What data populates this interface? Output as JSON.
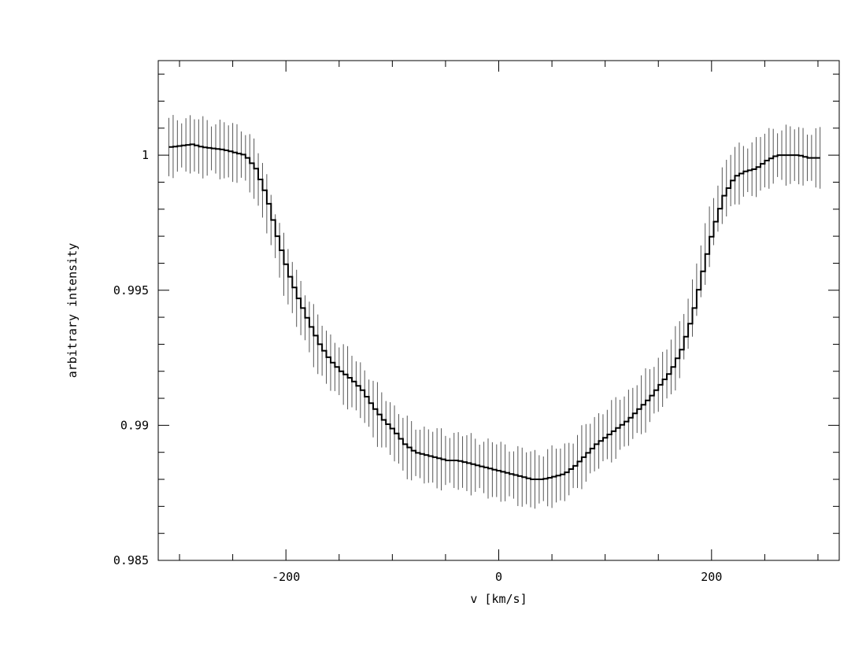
{
  "chart_data": {
    "type": "line",
    "title": "",
    "xlabel": "v [km/s]",
    "ylabel": "arbitrary intensity",
    "xlim": [
      -320,
      320
    ],
    "ylim": [
      0.985,
      1.0035
    ],
    "grid": false,
    "x_ticks": [
      {
        "value": -200,
        "label": "-200"
      },
      {
        "value": 0,
        "label": "0"
      },
      {
        "value": 200,
        "label": "200"
      }
    ],
    "y_ticks": [
      {
        "value": 0.985,
        "label": "0.985"
      },
      {
        "value": 0.99,
        "label": "0.99"
      },
      {
        "value": 0.995,
        "label": "0.995"
      },
      {
        "value": 1.0,
        "label": "1"
      }
    ],
    "x_minor_step": 50,
    "y_minor_step": 0.001,
    "series": [
      {
        "color": "#000000",
        "error_color": "#555555",
        "error_half_width": 0.001,
        "points": [
          [
            -310,
            1.0003
          ],
          [
            -290,
            1.0004
          ],
          [
            -280,
            1.0003
          ],
          [
            -260,
            1.0002
          ],
          [
            -250,
            1.0001
          ],
          [
            -240,
            1.0
          ],
          [
            -230,
            0.9995
          ],
          [
            -220,
            0.9985
          ],
          [
            -210,
            0.997
          ],
          [
            -200,
            0.9957
          ],
          [
            -190,
            0.9947
          ],
          [
            -180,
            0.9938
          ],
          [
            -170,
            0.993
          ],
          [
            -160,
            0.9924
          ],
          [
            -150,
            0.992
          ],
          [
            -140,
            0.9917
          ],
          [
            -130,
            0.9913
          ],
          [
            -120,
            0.9907
          ],
          [
            -110,
            0.9902
          ],
          [
            -100,
            0.9898
          ],
          [
            -90,
            0.9893
          ],
          [
            -80,
            0.989
          ],
          [
            -70,
            0.9889
          ],
          [
            -60,
            0.9888
          ],
          [
            -50,
            0.9887
          ],
          [
            -40,
            0.9887
          ],
          [
            -30,
            0.9886
          ],
          [
            -20,
            0.9885
          ],
          [
            -10,
            0.9884
          ],
          [
            0,
            0.9883
          ],
          [
            10,
            0.9882
          ],
          [
            20,
            0.9881
          ],
          [
            30,
            0.988
          ],
          [
            40,
            0.988
          ],
          [
            50,
            0.9881
          ],
          [
            60,
            0.9882
          ],
          [
            70,
            0.9885
          ],
          [
            80,
            0.9889
          ],
          [
            90,
            0.9893
          ],
          [
            100,
            0.9896
          ],
          [
            110,
            0.9899
          ],
          [
            120,
            0.9902
          ],
          [
            130,
            0.9906
          ],
          [
            140,
            0.991
          ],
          [
            150,
            0.9915
          ],
          [
            160,
            0.992
          ],
          [
            170,
            0.9928
          ],
          [
            180,
            0.994
          ],
          [
            190,
            0.9957
          ],
          [
            200,
            0.9973
          ],
          [
            210,
            0.9985
          ],
          [
            220,
            0.9992
          ],
          [
            230,
            0.9994
          ],
          [
            240,
            0.9995
          ],
          [
            250,
            0.9998
          ],
          [
            260,
            1.0
          ],
          [
            270,
            1.0
          ],
          [
            280,
            1.0
          ],
          [
            290,
            0.9999
          ],
          [
            300,
            0.9999
          ],
          [
            305,
            0.9999
          ]
        ]
      }
    ]
  }
}
